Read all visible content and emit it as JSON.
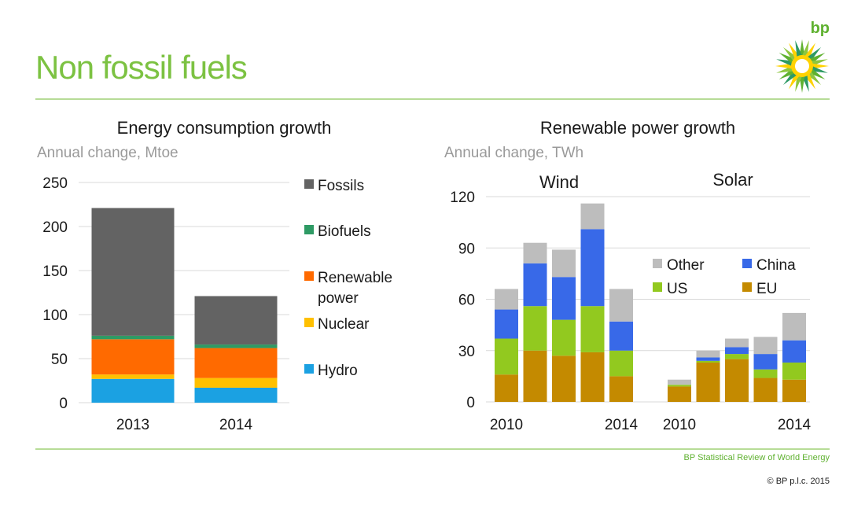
{
  "page": {
    "title": "Non fossil fuels",
    "logo_text": "bp",
    "source": "BP Statistical Review of World Energy",
    "copyright": "© BP p.l.c. 2015"
  },
  "colors": {
    "accent_green": "#7cc242",
    "Fossils": "#636363",
    "Biofuels": "#2e9a64",
    "Renewable power": "#ff6a00",
    "Nuclear": "#ffc000",
    "Hydro": "#1ba1e2",
    "Other": "#bdbdbd",
    "China": "#3869e8",
    "US": "#92c91f",
    "EU": "#c48a00"
  },
  "chart_data": [
    {
      "type": "bar",
      "stacked": true,
      "title": "Energy consumption growth",
      "subtitle": "Annual change, Mtoe",
      "categories": [
        "2013",
        "2014"
      ],
      "ylim": [
        0,
        250
      ],
      "yticks": [
        0,
        50,
        100,
        150,
        200,
        250
      ],
      "grid": true,
      "legend_position": "right",
      "series": [
        {
          "name": "Hydro",
          "values": [
            27,
            17
          ]
        },
        {
          "name": "Nuclear",
          "values": [
            5,
            11
          ]
        },
        {
          "name": "Renewable power",
          "values": [
            40,
            34
          ]
        },
        {
          "name": "Biofuels",
          "values": [
            4,
            4
          ]
        },
        {
          "name": "Fossils",
          "values": [
            145,
            55
          ]
        }
      ],
      "legend": [
        "Fossils",
        "Biofuels",
        "Renewable power",
        "Nuclear",
        "Hydro"
      ]
    },
    {
      "type": "bar",
      "stacked": true,
      "title": "Renewable power growth",
      "subtitle": "Annual change, TWh",
      "ylim": [
        0,
        120
      ],
      "yticks": [
        0,
        30,
        60,
        90,
        120
      ],
      "grid": true,
      "legend_position": "top-right",
      "legend": [
        "Other",
        "China",
        "US",
        "EU"
      ],
      "groups": [
        {
          "label": "Wind",
          "categories": [
            "2010",
            "2011",
            "2012",
            "2013",
            "2014"
          ],
          "tick_labels": [
            "2010",
            "",
            "",
            "",
            "2014"
          ],
          "series": [
            {
              "name": "EU",
              "values": [
                16,
                30,
                27,
                29,
                15
              ]
            },
            {
              "name": "US",
              "values": [
                21,
                26,
                21,
                27,
                15
              ]
            },
            {
              "name": "China",
              "values": [
                17,
                25,
                25,
                45,
                17
              ]
            },
            {
              "name": "Other",
              "values": [
                12,
                12,
                16,
                15,
                19
              ]
            }
          ]
        },
        {
          "label": "Solar",
          "categories": [
            "2010",
            "2011",
            "2012",
            "2013",
            "2014"
          ],
          "tick_labels": [
            "2010",
            "",
            "",
            "",
            "2014"
          ],
          "series": [
            {
              "name": "EU",
              "values": [
                9,
                23,
                25,
                14,
                13
              ]
            },
            {
              "name": "US",
              "values": [
                1,
                1,
                3,
                5,
                10
              ]
            },
            {
              "name": "China",
              "values": [
                0,
                2,
                4,
                9,
                13
              ]
            },
            {
              "name": "Other",
              "values": [
                3,
                4,
                5,
                10,
                16
              ]
            }
          ]
        }
      ]
    }
  ]
}
